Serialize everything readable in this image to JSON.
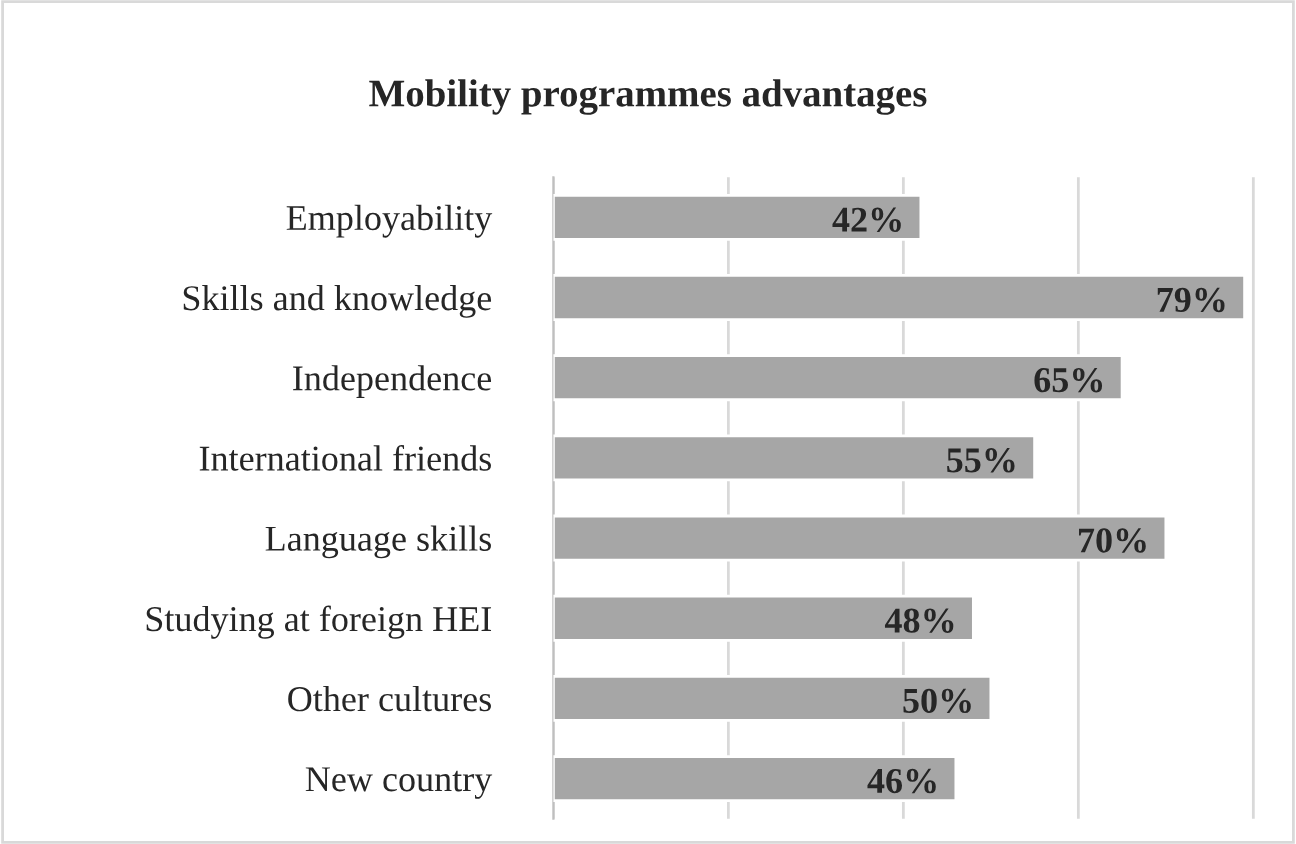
{
  "chart_data": {
    "type": "bar",
    "orientation": "horizontal",
    "title": "Mobility programmes advantages",
    "categories": [
      "Employability",
      "Skills and knowledge",
      "Independence",
      "International friends",
      "Language skills",
      "Studying at foreign HEI",
      "Other cultures",
      "New country"
    ],
    "values": [
      42,
      79,
      65,
      55,
      70,
      48,
      50,
      46
    ],
    "value_labels": [
      "42%",
      "79%",
      "65%",
      "55%",
      "70%",
      "48%",
      "50%",
      "46%"
    ],
    "color": "#a6a6a6",
    "grid": "x",
    "tick_labels": "y"
  }
}
